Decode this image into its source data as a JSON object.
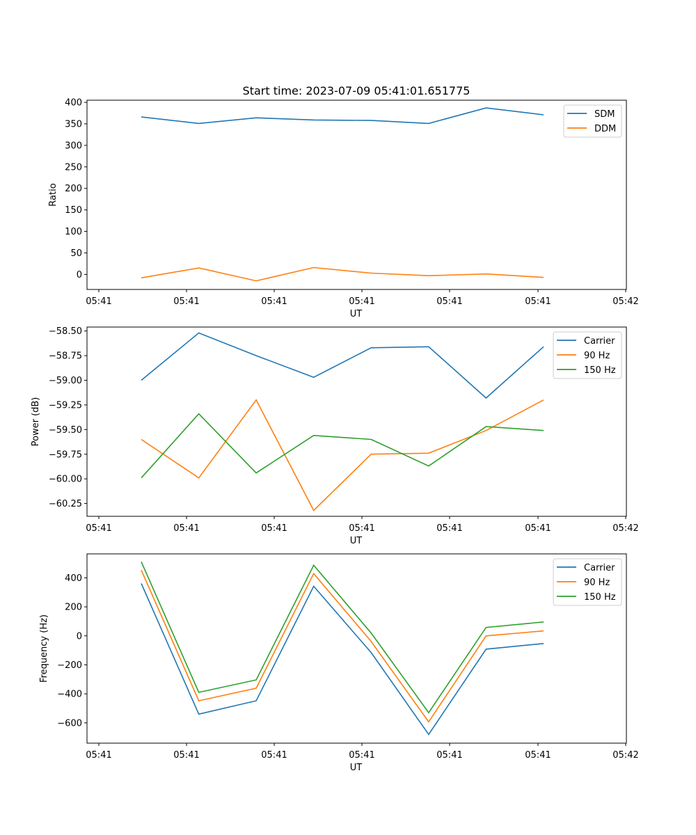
{
  "figure": {
    "title": "Start time: 2023-07-09 05:41:01.651775"
  },
  "colors": {
    "blue": "#1f77b4",
    "orange": "#ff7f0e",
    "green": "#2ca02c"
  },
  "chart_data": [
    {
      "type": "line",
      "title": "Start time: 2023-07-09 05:41:01.651775",
      "xlabel": "UT",
      "ylabel": "Ratio",
      "x_tick_labels": [
        "05:41",
        "05:41",
        "05:41",
        "05:41",
        "05:41",
        "05:41",
        "05:42"
      ],
      "y_ticks": [
        0,
        50,
        100,
        150,
        200,
        250,
        300,
        350,
        400
      ],
      "y_tick_labels": [
        "0",
        "50",
        "100",
        "150",
        "200",
        "250",
        "300",
        "350",
        "400"
      ],
      "ylim": [
        -35,
        405
      ],
      "x": [
        1,
        2,
        3,
        4,
        5,
        6,
        7,
        8
      ],
      "legend": "top-right",
      "grid": false,
      "series": [
        {
          "name": "SDM",
          "color": "#1f77b4",
          "values": [
            366,
            351,
            364,
            359,
            358,
            351,
            387,
            371
          ]
        },
        {
          "name": "DDM",
          "color": "#ff7f0e",
          "values": [
            -8,
            15,
            -15,
            16,
            3,
            -3,
            1,
            -7
          ]
        }
      ]
    },
    {
      "type": "line",
      "title": "",
      "xlabel": "UT",
      "ylabel": "Power (dB)",
      "x_tick_labels": [
        "05:41",
        "05:41",
        "05:41",
        "05:41",
        "05:41",
        "05:41",
        "05:42"
      ],
      "y_ticks": [
        -60.25,
        -60.0,
        -59.75,
        -59.5,
        -59.25,
        -59.0,
        -58.75,
        -58.5
      ],
      "y_tick_labels": [
        "−60.25",
        "−60.00",
        "−59.75",
        "−59.50",
        "−59.25",
        "−59.00",
        "−58.75",
        "−58.50"
      ],
      "ylim": [
        -60.38,
        -58.46
      ],
      "x": [
        1,
        2,
        3,
        4,
        5,
        6,
        7,
        8
      ],
      "legend": "top-right",
      "grid": false,
      "series": [
        {
          "name": "Carrier",
          "color": "#1f77b4",
          "values": [
            -59.0,
            -58.52,
            -58.75,
            -58.97,
            -58.67,
            -58.66,
            -59.18,
            -58.66
          ]
        },
        {
          "name": "90 Hz",
          "color": "#ff7f0e",
          "values": [
            -59.6,
            -59.99,
            -59.2,
            -60.32,
            -59.75,
            -59.74,
            -59.51,
            -59.2
          ]
        },
        {
          "name": "150 Hz",
          "color": "#2ca02c",
          "values": [
            -59.99,
            -59.34,
            -59.94,
            -59.56,
            -59.6,
            -59.87,
            -59.47,
            -59.51
          ]
        }
      ]
    },
    {
      "type": "line",
      "title": "",
      "xlabel": "UT",
      "ylabel": "Frequency (Hz)",
      "x_tick_labels": [
        "05:41",
        "05:41",
        "05:41",
        "05:41",
        "05:41",
        "05:41",
        "05:42"
      ],
      "y_ticks": [
        -600,
        -400,
        -200,
        0,
        200,
        400
      ],
      "y_tick_labels": [
        "−600",
        "−400",
        "−200",
        "0",
        "200",
        "400"
      ],
      "ylim": [
        -740,
        565
      ],
      "x": [
        1,
        2,
        3,
        4,
        5,
        6,
        7,
        8
      ],
      "legend": "top-right",
      "grid": false,
      "series": [
        {
          "name": "Carrier",
          "color": "#1f77b4",
          "values": [
            361,
            -540,
            -448,
            342,
            -116,
            -680,
            -92,
            -53
          ]
        },
        {
          "name": "90 Hz",
          "color": "#ff7f0e",
          "values": [
            453,
            -448,
            -361,
            429,
            -39,
            -593,
            0,
            34
          ]
        },
        {
          "name": "150 Hz",
          "color": "#2ca02c",
          "values": [
            511,
            -390,
            -304,
            487,
            19,
            -530,
            58,
            96
          ]
        }
      ]
    }
  ]
}
